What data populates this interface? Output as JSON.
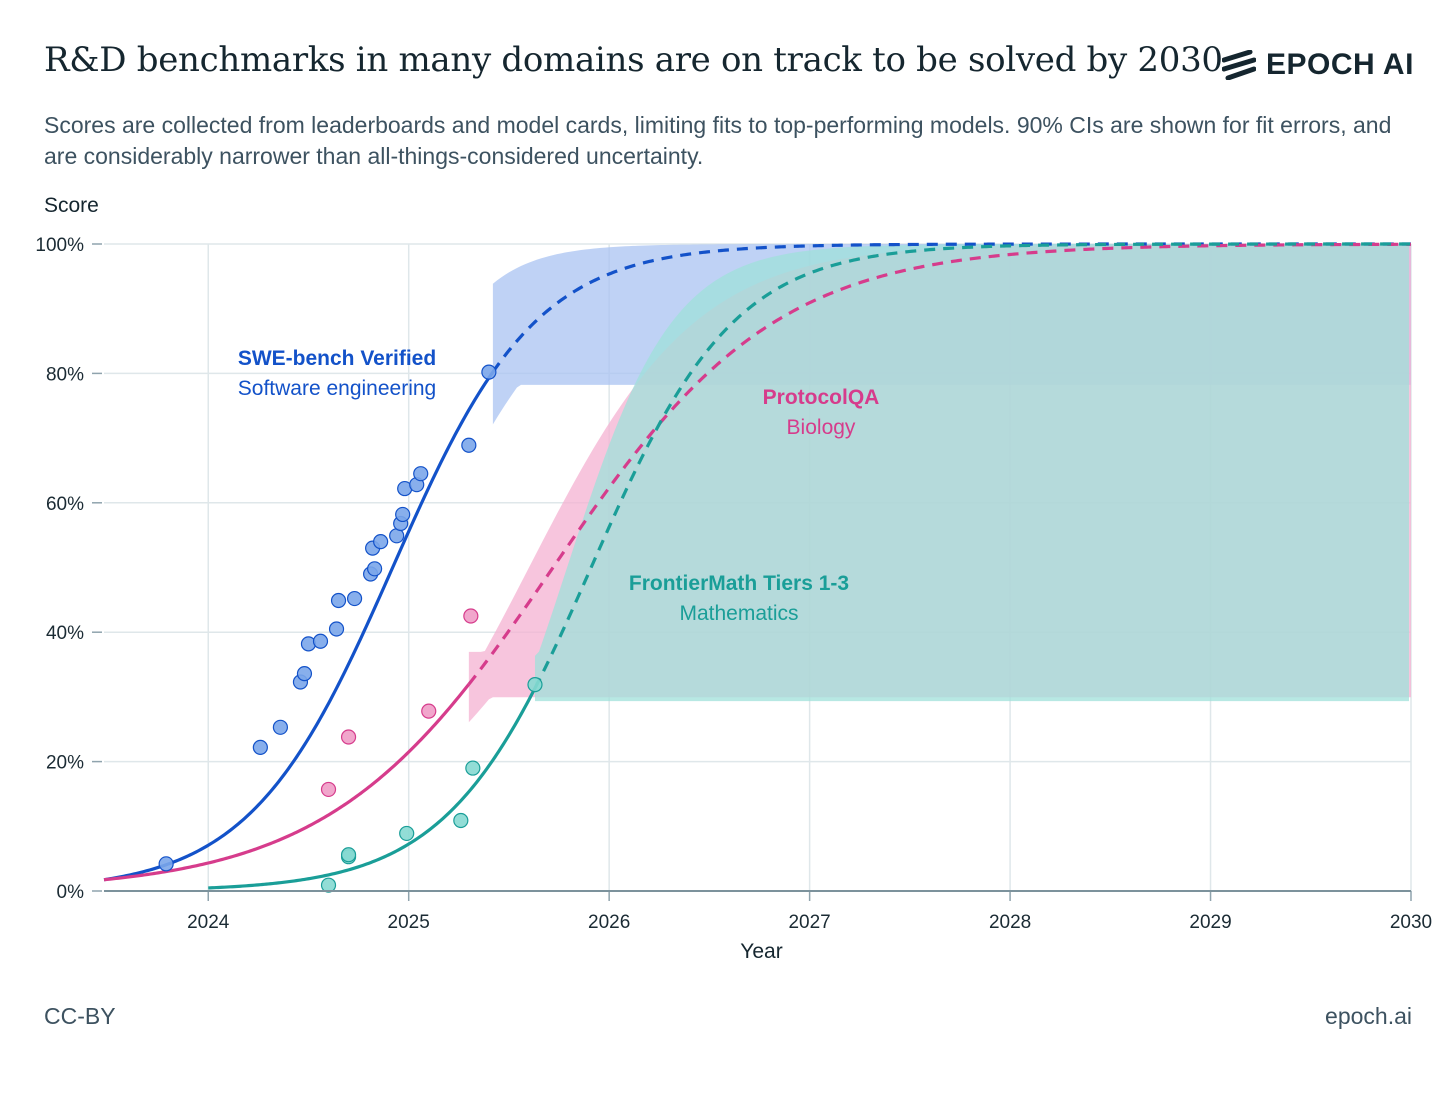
{
  "header": {
    "title": "R&D benchmarks in many domains are on track to be solved by 2030",
    "logo_text": "EPOCH AI",
    "subtitle": "Scores are collected from leaderboards and model cards, limiting fits to top-performing models. 90% CIs are shown for fit errors, and are considerably narrower than all-things-considered uncertainty."
  },
  "footer": {
    "license": "CC-BY",
    "site": "epoch.ai"
  },
  "chart_data": {
    "type": "scatter",
    "title": "R&D benchmarks in many domains are on track to be solved by 2030",
    "xlabel": "Year",
    "ylabel": "Score",
    "xlim": [
      2023.48,
      2030
    ],
    "ylim": [
      0,
      100
    ],
    "x_ticks": [
      2024,
      2025,
      2026,
      2027,
      2028,
      2029,
      2030
    ],
    "x_tick_labels": [
      "2024",
      "2025",
      "2026",
      "2027",
      "2028",
      "2029",
      "2030"
    ],
    "y_ticks": [
      0,
      20,
      40,
      60,
      80,
      100
    ],
    "y_tick_labels": [
      "0%",
      "20%",
      "40%",
      "60%",
      "80%",
      "100%"
    ],
    "grid": true,
    "series": [
      {
        "name": "SWE-bench Verified",
        "domain": "Software engineering",
        "color": "#1352c9",
        "point_color": "#7ba6ea",
        "band_color": "#a9c3f2",
        "fit": {
          "midpoint": 2024.92,
          "rate": 2.8,
          "last_observed": 2025.42,
          "ci_upper_rate": 4.4,
          "ci_lower_rate": 2.8,
          "ci_lower_max": 97
        },
        "points": [
          [
            2023.79,
            4.2
          ],
          [
            2024.26,
            22.2
          ],
          [
            2024.36,
            25.3
          ],
          [
            2024.46,
            32.3
          ],
          [
            2024.48,
            33.6
          ],
          [
            2024.5,
            38.2
          ],
          [
            2024.56,
            38.6
          ],
          [
            2024.64,
            40.5
          ],
          [
            2024.65,
            44.9
          ],
          [
            2024.73,
            45.2
          ],
          [
            2024.81,
            49.0
          ],
          [
            2024.82,
            53.0
          ],
          [
            2024.83,
            49.8
          ],
          [
            2024.86,
            54.0
          ],
          [
            2024.94,
            54.9
          ],
          [
            2024.96,
            56.8
          ],
          [
            2024.97,
            58.2
          ],
          [
            2024.98,
            62.2
          ],
          [
            2025.04,
            62.8
          ],
          [
            2025.06,
            64.5
          ],
          [
            2025.3,
            68.9
          ],
          [
            2025.4,
            80.2
          ]
        ]
      },
      {
        "name": "ProtocolQA",
        "domain": "Biology",
        "color": "#d63c8c",
        "point_color": "#ef9cc6",
        "band_color": "#f4b2d1",
        "fit": {
          "midpoint": 2025.72,
          "rate": 1.8,
          "last_observed": 2025.3,
          "ci_upper_rate": 2.4,
          "ci_lower_rate": 1.8,
          "ci_lower_max": 95
        },
        "points": [
          [
            2024.6,
            15.7
          ],
          [
            2024.7,
            23.8
          ],
          [
            2025.1,
            27.8
          ],
          [
            2025.31,
            42.5
          ]
        ]
      },
      {
        "name": "FrontierMath Tiers 1-3",
        "domain": "Mathematics",
        "color": "#1a9e98",
        "point_color": "#86d9d2",
        "band_color": "#9fe0da",
        "fit": {
          "midpoint": 2025.91,
          "rate": 2.8,
          "last_observed": 2025.63,
          "ci_upper_rate": 3.8,
          "ci_lower_rate": 2.0,
          "ci_lower_max": 98
        },
        "points": [
          [
            2024.6,
            0.9
          ],
          [
            2024.7,
            5.3
          ],
          [
            2024.7,
            5.6
          ],
          [
            2024.99,
            8.9
          ],
          [
            2025.26,
            10.9
          ],
          [
            2025.32,
            19.0
          ],
          [
            2025.63,
            31.9
          ]
        ]
      }
    ]
  }
}
